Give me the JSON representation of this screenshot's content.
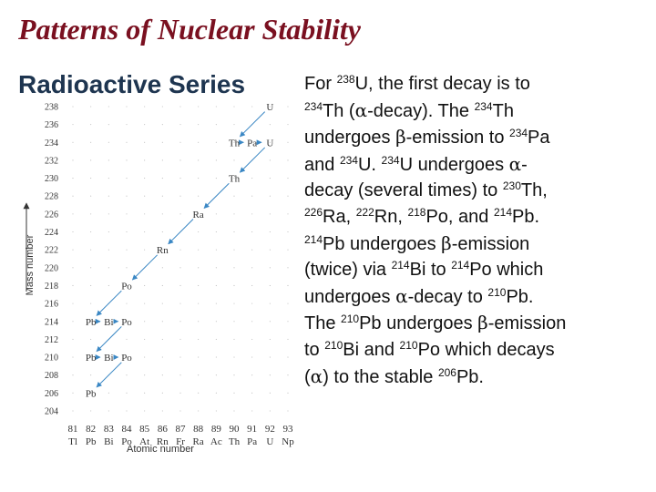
{
  "slide": {
    "title": "Patterns of Nuclear Stability",
    "subtitle": "Radioactive Series"
  },
  "description": {
    "lines": [
      [
        {
          "t": "For "
        },
        {
          "sup": "238"
        },
        {
          "t": "U, the first decay is to"
        }
      ],
      [
        {
          "sup": "234"
        },
        {
          "t": "Th ("
        },
        {
          "sym": "α"
        },
        {
          "t": "-decay).  The "
        },
        {
          "sup": "234"
        },
        {
          "t": "Th"
        }
      ],
      [
        {
          "t": "undergoes "
        },
        {
          "sym": "β"
        },
        {
          "t": "-emission to "
        },
        {
          "sup": "234"
        },
        {
          "t": "Pa"
        }
      ],
      [
        {
          "t": "and "
        },
        {
          "sup": "234"
        },
        {
          "t": "U.  "
        },
        {
          "sup": "234"
        },
        {
          "t": "U undergoes "
        },
        {
          "sym": "α"
        },
        {
          "t": "-"
        }
      ],
      [
        {
          "t": "decay (several times) to "
        },
        {
          "sup": "230"
        },
        {
          "t": "Th,"
        }
      ],
      [
        {
          "sup": "226"
        },
        {
          "t": "Ra, "
        },
        {
          "sup": "222"
        },
        {
          "t": "Rn, "
        },
        {
          "sup": "218"
        },
        {
          "t": "Po, and "
        },
        {
          "sup": "214"
        },
        {
          "t": "Pb."
        }
      ],
      [
        {
          "sup": "214"
        },
        {
          "t": "Pb undergoes "
        },
        {
          "sym": "β"
        },
        {
          "t": "-emission"
        }
      ],
      [
        {
          "t": "(twice) via "
        },
        {
          "sup": "214"
        },
        {
          "t": "Bi to "
        },
        {
          "sup": "214"
        },
        {
          "t": "Po which"
        }
      ],
      [
        {
          "t": "undergoes "
        },
        {
          "sym": "α"
        },
        {
          "t": "-decay to "
        },
        {
          "sup": "210"
        },
        {
          "t": "Pb."
        }
      ],
      [
        {
          "t": "The "
        },
        {
          "sup": "210"
        },
        {
          "t": "Pb undergoes "
        },
        {
          "sym": "β"
        },
        {
          "t": "-emission"
        }
      ],
      [
        {
          "t": "to "
        },
        {
          "sup": "210"
        },
        {
          "t": "Bi and "
        },
        {
          "sup": "210"
        },
        {
          "t": "Po which decays"
        }
      ],
      [
        {
          "t": "("
        },
        {
          "sym": "α"
        },
        {
          "t": ") to the stable "
        },
        {
          "sup": "206"
        },
        {
          "t": "Pb."
        }
      ]
    ]
  },
  "chart_data": {
    "type": "scatter",
    "title": "Radioactive Series",
    "xlabel": "Atomic number",
    "ylabel": "Mass number",
    "xlim": [
      81,
      93
    ],
    "ylim": [
      204,
      238
    ],
    "x_ticks": [
      81,
      82,
      83,
      84,
      85,
      86,
      87,
      88,
      89,
      90,
      91,
      92,
      93
    ],
    "x_tick_symbols": [
      "Tl",
      "Pb",
      "Bi",
      "Po",
      "At",
      "Rn",
      "Fr",
      "Ra",
      "Ac",
      "Th",
      "Pa",
      "U",
      "Np"
    ],
    "y_ticks": [
      204,
      206,
      208,
      210,
      212,
      214,
      216,
      218,
      220,
      222,
      224,
      226,
      228,
      230,
      232,
      234,
      236,
      238
    ],
    "nuclides": [
      {
        "label": "U",
        "z": 92,
        "a": 238
      },
      {
        "label": "Th",
        "z": 90,
        "a": 234
      },
      {
        "label": "Pa",
        "z": 91,
        "a": 234
      },
      {
        "label": "U",
        "z": 92,
        "a": 234
      },
      {
        "label": "Th",
        "z": 90,
        "a": 230
      },
      {
        "label": "Ra",
        "z": 88,
        "a": 226
      },
      {
        "label": "Rn",
        "z": 86,
        "a": 222
      },
      {
        "label": "Po",
        "z": 84,
        "a": 218
      },
      {
        "label": "Pb",
        "z": 82,
        "a": 214
      },
      {
        "label": "Bi",
        "z": 83,
        "a": 214
      },
      {
        "label": "Po",
        "z": 84,
        "a": 214
      },
      {
        "label": "Pb",
        "z": 82,
        "a": 210
      },
      {
        "label": "Bi",
        "z": 83,
        "a": 210
      },
      {
        "label": "Po",
        "z": 84,
        "a": 210
      },
      {
        "label": "Pb",
        "z": 82,
        "a": 206
      }
    ],
    "decays": [
      {
        "type": "alpha",
        "from": [
          92,
          238
        ],
        "to": [
          90,
          234
        ]
      },
      {
        "type": "beta",
        "from": [
          90,
          234
        ],
        "to": [
          91,
          234
        ]
      },
      {
        "type": "beta",
        "from": [
          91,
          234
        ],
        "to": [
          92,
          234
        ]
      },
      {
        "type": "alpha",
        "from": [
          92,
          234
        ],
        "to": [
          90,
          230
        ]
      },
      {
        "type": "alpha",
        "from": [
          90,
          230
        ],
        "to": [
          88,
          226
        ]
      },
      {
        "type": "alpha",
        "from": [
          88,
          226
        ],
        "to": [
          86,
          222
        ]
      },
      {
        "type": "alpha",
        "from": [
          86,
          222
        ],
        "to": [
          84,
          218
        ]
      },
      {
        "type": "alpha",
        "from": [
          84,
          218
        ],
        "to": [
          82,
          214
        ]
      },
      {
        "type": "beta",
        "from": [
          82,
          214
        ],
        "to": [
          83,
          214
        ]
      },
      {
        "type": "beta",
        "from": [
          83,
          214
        ],
        "to": [
          84,
          214
        ]
      },
      {
        "type": "alpha",
        "from": [
          84,
          214
        ],
        "to": [
          82,
          210
        ]
      },
      {
        "type": "beta",
        "from": [
          82,
          210
        ],
        "to": [
          83,
          210
        ]
      },
      {
        "type": "beta",
        "from": [
          83,
          210
        ],
        "to": [
          84,
          210
        ]
      },
      {
        "type": "alpha",
        "from": [
          84,
          210
        ],
        "to": [
          82,
          206
        ]
      }
    ],
    "colors": {
      "arrow": "#3a87c4",
      "text": "#333333"
    }
  }
}
